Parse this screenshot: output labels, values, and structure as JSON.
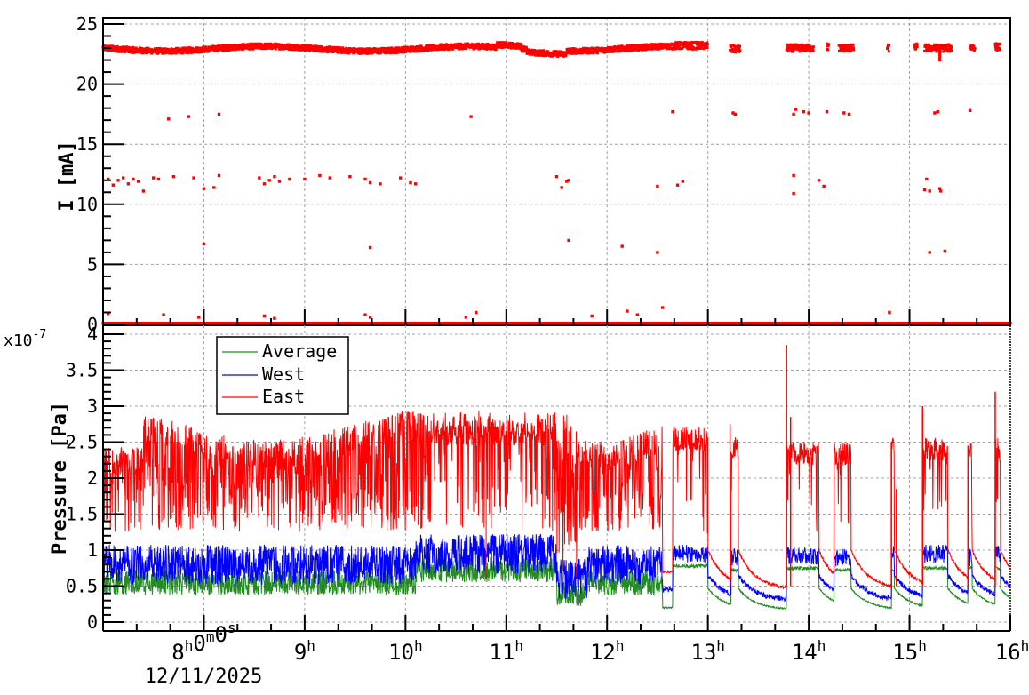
{
  "chart_data": [
    {
      "type": "scatter",
      "panel": "top",
      "title": "",
      "xlabel": "",
      "ylabel": "I [mA]",
      "ylim": [
        0,
        25
      ],
      "yticks": [
        "0",
        "5",
        "10",
        "15",
        "20",
        "25"
      ],
      "xlim_hours": [
        7.0,
        16.0
      ],
      "grid": true,
      "series": [
        {
          "name": "Beam current",
          "color": "#ff0000",
          "description": "Main band ~23 mA from 7h to 13h, intermittent clusters ~23 mA after 13h; sparse points near 17.5 mA, 12 mA, 6-7 mA; continuous baseline at 0 mA",
          "main_band_level": 23,
          "secondary_levels": [
            17.5,
            12,
            6.5,
            0
          ]
        }
      ]
    },
    {
      "type": "line",
      "panel": "bottom",
      "title": "",
      "xlabel": "",
      "ylabel": "Pressure [Pa]",
      "yscale_label": "x10^-7",
      "ylim": [
        0,
        4
      ],
      "yticks": [
        "0",
        "0.5",
        "1",
        "1.5",
        "2",
        "2.5",
        "3",
        "3.5",
        "4"
      ],
      "xlim_hours": [
        7.0,
        16.0
      ],
      "grid": true,
      "legend_position": "upper-left",
      "series": [
        {
          "name": "Average",
          "color": "#228b22",
          "typical_range_7_12h": [
            0.45,
            0.85
          ],
          "baseline_13_16h": 0.18
        },
        {
          "name": "West",
          "color": "#0000ff",
          "typical_range_7_12h": [
            0.55,
            1.25
          ],
          "baseline_13_16h": 0.3
        },
        {
          "name": "East",
          "color": "#ff0000",
          "typical_range_7_12h": [
            1.2,
            2.9
          ],
          "baseline_13_16h": 0.45,
          "peak": 3.85
        }
      ]
    }
  ],
  "axes": {
    "top": {
      "ylabel": "I [mA]",
      "yticks": [
        "0",
        "5",
        "10",
        "15",
        "20",
        "25"
      ]
    },
    "bottom": {
      "ylabel": "Pressure [Pa]",
      "exponent_label_base": "x10",
      "exponent_label_power": "-7",
      "yticks": [
        "0",
        "0.5",
        "1",
        "1.5",
        "2",
        "2.5",
        "3",
        "3.5",
        "4"
      ]
    },
    "x": {
      "ticks": [
        {
          "base": "8",
          "sup": "h",
          "base2": "0",
          "sup2": "m",
          "base3": "0",
          "sup3": "s"
        },
        {
          "base": "9",
          "sup": "h"
        },
        {
          "base": "10",
          "sup": "h"
        },
        {
          "base": "11",
          "sup": "h"
        },
        {
          "base": "12",
          "sup": "h"
        },
        {
          "base": "13",
          "sup": "h"
        },
        {
          "base": "14",
          "sup": "h"
        },
        {
          "base": "15",
          "sup": "h"
        },
        {
          "base": "16",
          "sup": "h"
        }
      ],
      "date": "12/11/2025"
    }
  },
  "legend": {
    "items": [
      {
        "label": "Average",
        "color": "#228b22"
      },
      {
        "label": "West",
        "color": "#0000ff"
      },
      {
        "label": "East",
        "color": "#ff0000"
      }
    ]
  }
}
